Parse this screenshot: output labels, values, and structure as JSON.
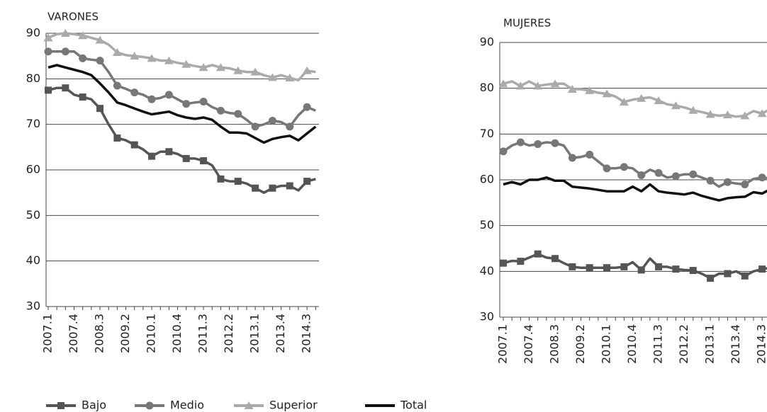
{
  "chart_data": [
    {
      "type": "line",
      "title": "VARONES",
      "categories": [
        "2007.1",
        null,
        null,
        "2007.4",
        null,
        null,
        "2008.3",
        null,
        null,
        "2009.2",
        null,
        null,
        "2010.1",
        null,
        null,
        "2010.4",
        null,
        null,
        "2011.3",
        null,
        null,
        "2012.2",
        null,
        null,
        "2013.1",
        null,
        null,
        "2013.4",
        null,
        null,
        "2014.3",
        null
      ],
      "ylim": [
        30,
        90
      ],
      "yticks": [
        30,
        40,
        50,
        60,
        70,
        80,
        90
      ],
      "grid": true,
      "series": [
        {
          "name": "Bajo",
          "color": "#555555",
          "marker": "square",
          "values": [
            77.5,
            78,
            78,
            76.5,
            76,
            75.5,
            73.5,
            70,
            67,
            66.5,
            65.5,
            64.5,
            63,
            64,
            64,
            63.5,
            62.5,
            62.5,
            62,
            61,
            58,
            57.5,
            57.5,
            57,
            56,
            55,
            56,
            56.5,
            56.5,
            55.5,
            57.5,
            58
          ]
        },
        {
          "name": "Medio",
          "color": "#777777",
          "marker": "circle",
          "values": [
            86,
            86,
            86,
            86,
            84.5,
            84.2,
            84,
            81.5,
            78.5,
            77.8,
            77,
            76.5,
            75.5,
            75.8,
            76.5,
            75.5,
            74.5,
            74.8,
            75,
            73.8,
            73,
            72.5,
            72.3,
            71,
            69.5,
            70,
            70.8,
            70.5,
            69.5,
            72,
            73.8,
            73
          ]
        },
        {
          "name": "Superior",
          "color": "#aaaaaa",
          "marker": "triangle",
          "values": [
            89,
            89.8,
            90,
            89.8,
            89.5,
            89,
            88.5,
            87.5,
            85.8,
            85.2,
            85,
            84.8,
            84.5,
            84,
            84,
            83.5,
            83.2,
            82.8,
            82.5,
            83,
            82.5,
            82.3,
            81.8,
            81.5,
            81.5,
            80.8,
            80.3,
            80.8,
            80.2,
            79.7,
            81.8,
            81.5
          ]
        },
        {
          "name": "Total",
          "color": "#111111",
          "marker": "none",
          "values": [
            82.5,
            83,
            82.5,
            82,
            81.5,
            80.8,
            79,
            77,
            74.8,
            74.2,
            73.5,
            72.8,
            72.2,
            72.5,
            72.8,
            72,
            71.5,
            71.2,
            71.5,
            71,
            69.5,
            68.2,
            68.2,
            68,
            67,
            66,
            66.8,
            67.2,
            67.5,
            66.5,
            68,
            69.5
          ]
        }
      ]
    },
    {
      "type": "line",
      "title": "MUJERES",
      "categories": [
        "2007.1",
        null,
        null,
        "2007.4",
        null,
        null,
        "2008.3",
        null,
        null,
        "2009.2",
        null,
        null,
        "2010.1",
        null,
        null,
        "2010.4",
        null,
        null,
        "2011.3",
        null,
        null,
        "2012.2",
        null,
        null,
        "2013.1",
        null,
        null,
        "2013.4",
        null,
        null,
        "2014.3",
        null
      ],
      "ylim": [
        30,
        90
      ],
      "yticks": [
        30,
        40,
        50,
        60,
        70,
        80,
        90
      ],
      "grid": true,
      "series": [
        {
          "color": "#555555",
          "marker": "square",
          "values": [
            41.8,
            42.3,
            42.2,
            43,
            43.8,
            43,
            42.8,
            41.8,
            41,
            40.8,
            40.8,
            40.8,
            40.8,
            40.8,
            41,
            42,
            40.3,
            42.8,
            41,
            41,
            40.5,
            40.3,
            40.2,
            39.5,
            38.5,
            39.5,
            39.5,
            40,
            39,
            40,
            40.5,
            40.8
          ]
        },
        {
          "color": "#777777",
          "marker": "circle",
          "values": [
            66.2,
            67.5,
            68.2,
            67.5,
            67.8,
            68.2,
            68,
            67.5,
            64.8,
            65,
            65.5,
            64,
            62.5,
            62.5,
            62.8,
            62.5,
            61,
            62.2,
            61.5,
            60.5,
            60.8,
            61.2,
            61.2,
            60.5,
            59.8,
            58.5,
            59.5,
            59.2,
            59,
            60.2,
            60.5,
            60.3
          ]
        },
        {
          "color": "#aaaaaa",
          "marker": "triangle",
          "values": [
            81,
            81.5,
            80.5,
            81.5,
            80.5,
            80.8,
            81,
            81,
            79.8,
            79.8,
            79.5,
            79,
            78.8,
            78.2,
            77,
            77.5,
            77.8,
            78,
            77.3,
            76.5,
            76.2,
            75.8,
            75.2,
            74.8,
            74.3,
            74,
            74.2,
            73.8,
            74,
            75,
            74.5,
            75.5
          ]
        },
        {
          "color": "#111111",
          "marker": "none",
          "values": [
            59,
            59.5,
            59,
            60,
            60,
            60.5,
            59.8,
            59.8,
            58.5,
            58.3,
            58.1,
            57.8,
            57.5,
            57.5,
            57.5,
            58.5,
            57.5,
            59,
            57.5,
            57.2,
            57,
            56.8,
            57.2,
            56.5,
            56,
            55.5,
            56,
            56.2,
            56.3,
            57.3,
            57,
            58
          ]
        }
      ]
    }
  ]
}
